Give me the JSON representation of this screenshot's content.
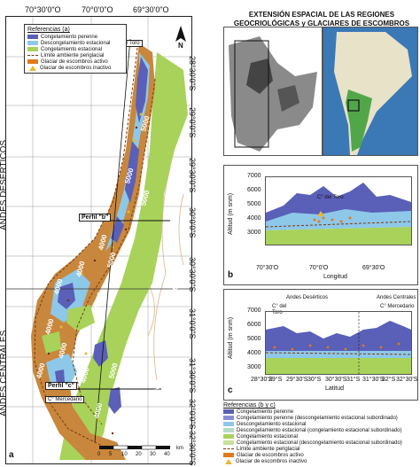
{
  "panel_a": {
    "label": "a",
    "top_lon_ticks": [
      "70°30'0\"O",
      "70°0'0\"O",
      "69°30'0\"O"
    ],
    "right_lat_ticks": [
      "28°30'0\"S",
      "29°0'0\"S",
      "29°30'0\"S",
      "30°0'0\"S",
      "30°30'0\"S",
      "31°0'0\"S",
      "31°30'0\"S",
      "32°0'0\"S",
      "32°30'0\"S"
    ],
    "region_top": "ANDES DESÉRTICOS",
    "region_bottom": "ANDES CENTRALES",
    "north_label": "N",
    "perfil_b": "Perfil \"b\"",
    "perfil_c": "Perfil \"c\"",
    "place_1": "C° del Toro",
    "place_2": "C° Mercedario",
    "contours": [
      "5000",
      "5000",
      "5000",
      "4000",
      "4000",
      "5000",
      "4000",
      "5000",
      "4000",
      "3000",
      "4000",
      "4000",
      "4000",
      "5000",
      "4000",
      "3000",
      "4000"
    ],
    "scale": {
      "ticks": [
        "0",
        "5",
        "10",
        "20",
        "30",
        "40"
      ],
      "unit": "km"
    },
    "legend": {
      "title": "Referencias (a)",
      "items": [
        {
          "label": "Congelamiento perenne",
          "color": "#5a5fb8",
          "kind": "box"
        },
        {
          "label": "Descongelamiento estacional",
          "color": "#8ec8e8",
          "kind": "box"
        },
        {
          "label": "Congelamiento estacional",
          "color": "#a8d25a",
          "kind": "box"
        },
        {
          "label": "Límite ambiente periglacial",
          "color": "#7a3b14",
          "kind": "line"
        },
        {
          "label": "Glaciar de escombros activo",
          "color": "#e07a1a",
          "kind": "box"
        },
        {
          "label": "Glaciar de escombros inactivo",
          "color": "#e8b830",
          "kind": "tri"
        }
      ]
    }
  },
  "inset": {
    "title": "EXTENSIÓN ESPACIAL DE LAS REGIONES GEOCRIOLÓGICAS y GLACIARES DE ESCOMBROS"
  },
  "panel_b": {
    "label": "b",
    "ylabel": "Altitud (m snm)",
    "xlabel": "Longitud",
    "yticks": [
      "7000",
      "6000",
      "5000",
      "4000",
      "3000"
    ],
    "xticks": [
      "70°30'O",
      "70°0'O",
      "69°30'O"
    ],
    "place": "C° del Toro"
  },
  "panel_c": {
    "label": "c",
    "ylabel": "Altitud (m snm)",
    "xlabel": "Latitud",
    "yticks": [
      "7000",
      "6000",
      "5000",
      "4000",
      "3000"
    ],
    "xticks": [
      "28°30'S",
      "29°S",
      "29°30'S",
      "30°S",
      "30°30'S",
      "31°S",
      "31°30'S",
      "32°S",
      "32°30'S"
    ],
    "region_left": "Andes Desérticos",
    "region_right": "Andes Centrales",
    "place_1": "C° del Toro",
    "place_2": "C° Mercedario"
  },
  "legend_bc": {
    "title": "Referencias (b y c)",
    "items": [
      {
        "label": "Congelamiento perenne",
        "color": "#5a5fb8",
        "kind": "box"
      },
      {
        "label": "Congelamiento perenne (descongelamiento estacional subordinado)",
        "color": "#8a8ed6",
        "kind": "box"
      },
      {
        "label": "Descongelamiento estacional",
        "color": "#8ec8e8",
        "kind": "box"
      },
      {
        "label": "Descongelamiento estacional (congelamiento estacional subordinado)",
        "color": "#b6dcc8",
        "kind": "box"
      },
      {
        "label": "Congelamiento estacional",
        "color": "#a8d25a",
        "kind": "box"
      },
      {
        "label": "Congelamiento estacional (descongelamiento estacional subordinado)",
        "color": "#c8e09a",
        "kind": "box"
      },
      {
        "label": "Límite ambiente periglacial",
        "color": "#7a3b14",
        "kind": "line"
      },
      {
        "label": "Glaciar de escombros activo",
        "color": "#e07a1a",
        "kind": "box"
      },
      {
        "label": "Glaciar de escombros inactivo",
        "color": "#e8b830",
        "kind": "tri"
      }
    ]
  }
}
